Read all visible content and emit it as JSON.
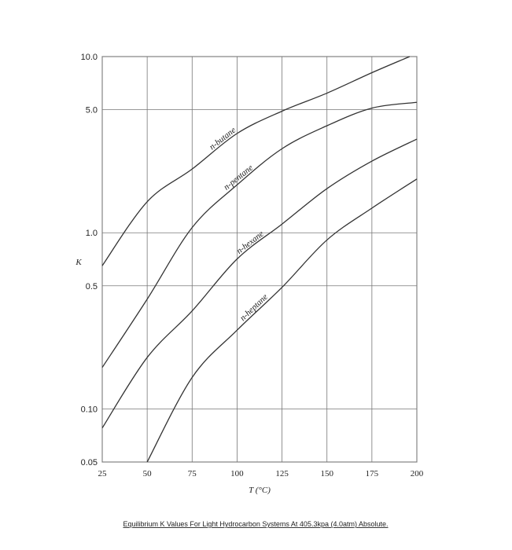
{
  "chart_data": {
    "type": "line",
    "x_label": "T (°C)",
    "y_label": "K",
    "log_y": true,
    "grid": true,
    "caption": "Equilibrium K Values For Light Hydrocarbon Systems At 405.3kpa (4.0atm) Absolute.",
    "xlim": [
      25,
      200
    ],
    "xticks": [
      25,
      50,
      75,
      100,
      125,
      150,
      175,
      200
    ],
    "ylim": [
      0.05,
      10
    ],
    "yticks": [
      0.05,
      {
        "value": 0.1,
        "label": "0.10"
      },
      0.5,
      {
        "value": 1,
        "label": "1.0"
      },
      {
        "value": 5,
        "label": "5.0"
      },
      {
        "value": 10,
        "label": "10.0"
      }
    ],
    "series": [
      {
        "name": "n-butane",
        "color": "#333333",
        "x": [
          25,
          50,
          75,
          100,
          125,
          150,
          175,
          196
        ],
        "values": [
          0.65,
          1.5,
          2.3,
          3.66,
          4.9,
          6.2,
          8.1,
          10
        ]
      },
      {
        "name": "n-pentane",
        "color": "#333333",
        "x": [
          25,
          50,
          75,
          100,
          125,
          150,
          175,
          200
        ],
        "values": [
          0.172,
          0.42,
          1.07,
          1.87,
          3.0,
          4.05,
          5.1,
          5.5
        ]
      },
      {
        "name": "n-hexane",
        "color": "#333333",
        "x": [
          25,
          50,
          75,
          100,
          125,
          150,
          175,
          200
        ],
        "values": [
          0.078,
          0.196,
          0.36,
          0.71,
          1.12,
          1.78,
          2.55,
          3.4
        ]
      },
      {
        "name": "n-heptane",
        "color": "#333333",
        "x": [
          50,
          75,
          100,
          125,
          150,
          175,
          200
        ],
        "values": [
          0.05,
          0.151,
          0.28,
          0.49,
          0.91,
          1.38,
          2.02
        ]
      }
    ]
  }
}
